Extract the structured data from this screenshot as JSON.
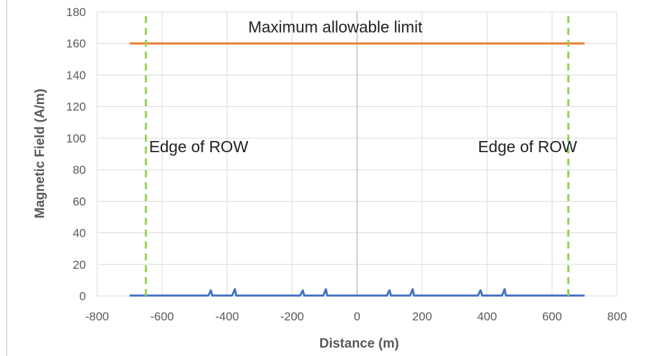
{
  "chart_data": {
    "type": "line",
    "title": "",
    "xlabel": "Distance (m)",
    "ylabel": "Magnetic Field (A/m)",
    "xlim": [
      -800,
      800
    ],
    "ylim": [
      0,
      180
    ],
    "xticks": [
      -800,
      -600,
      -400,
      -200,
      0,
      200,
      400,
      600,
      800
    ],
    "yticks": [
      0,
      20,
      40,
      60,
      80,
      100,
      120,
      140,
      160,
      180
    ],
    "grid": true,
    "legend": "none",
    "series": [
      {
        "color": "#ed7d31",
        "x": [
          -700,
          700
        ],
        "y": [
          160,
          160
        ]
      },
      {
        "color": "#4472c4",
        "x": [
          -700,
          -458,
          -454,
          -450,
          -446,
          -385,
          -380,
          -376,
          -372,
          -175,
          -171,
          -167,
          -163,
          -104,
          -100,
          -96,
          -92,
          92,
          96,
          100,
          104,
          163,
          167,
          171,
          175,
          372,
          376,
          380,
          385,
          446,
          450,
          454,
          458,
          700
        ],
        "y": [
          0.3,
          0.3,
          1.8,
          3.6,
          0.3,
          0.3,
          2.3,
          4.3,
          0.3,
          0.3,
          2.0,
          3.5,
          0.3,
          0.3,
          2.3,
          4.3,
          0.3,
          0.3,
          2.3,
          3.6,
          0.3,
          0.3,
          2.3,
          4.3,
          0.3,
          0.3,
          2.0,
          3.6,
          0.3,
          0.3,
          2.3,
          4.3,
          0.3,
          0.3
        ]
      },
      {
        "color": "#92d050",
        "dashed": true,
        "x": [
          -650,
          -650
        ],
        "y": [
          0,
          180
        ]
      },
      {
        "color": "#92d050",
        "dashed": true,
        "x": [
          650,
          650
        ],
        "y": [
          0,
          180
        ]
      }
    ],
    "annotations": [
      {
        "text": "Maximum allowable limit",
        "x": -335,
        "y": 167
      },
      {
        "text": "Edge of ROW",
        "x": -640,
        "y": 91
      },
      {
        "text": "Edge of ROW",
        "x": 372,
        "y": 91
      }
    ],
    "colors": {
      "axis_text": "#595959",
      "grid": "#d9d9d9",
      "zero_line": "#bfbfbf"
    }
  }
}
